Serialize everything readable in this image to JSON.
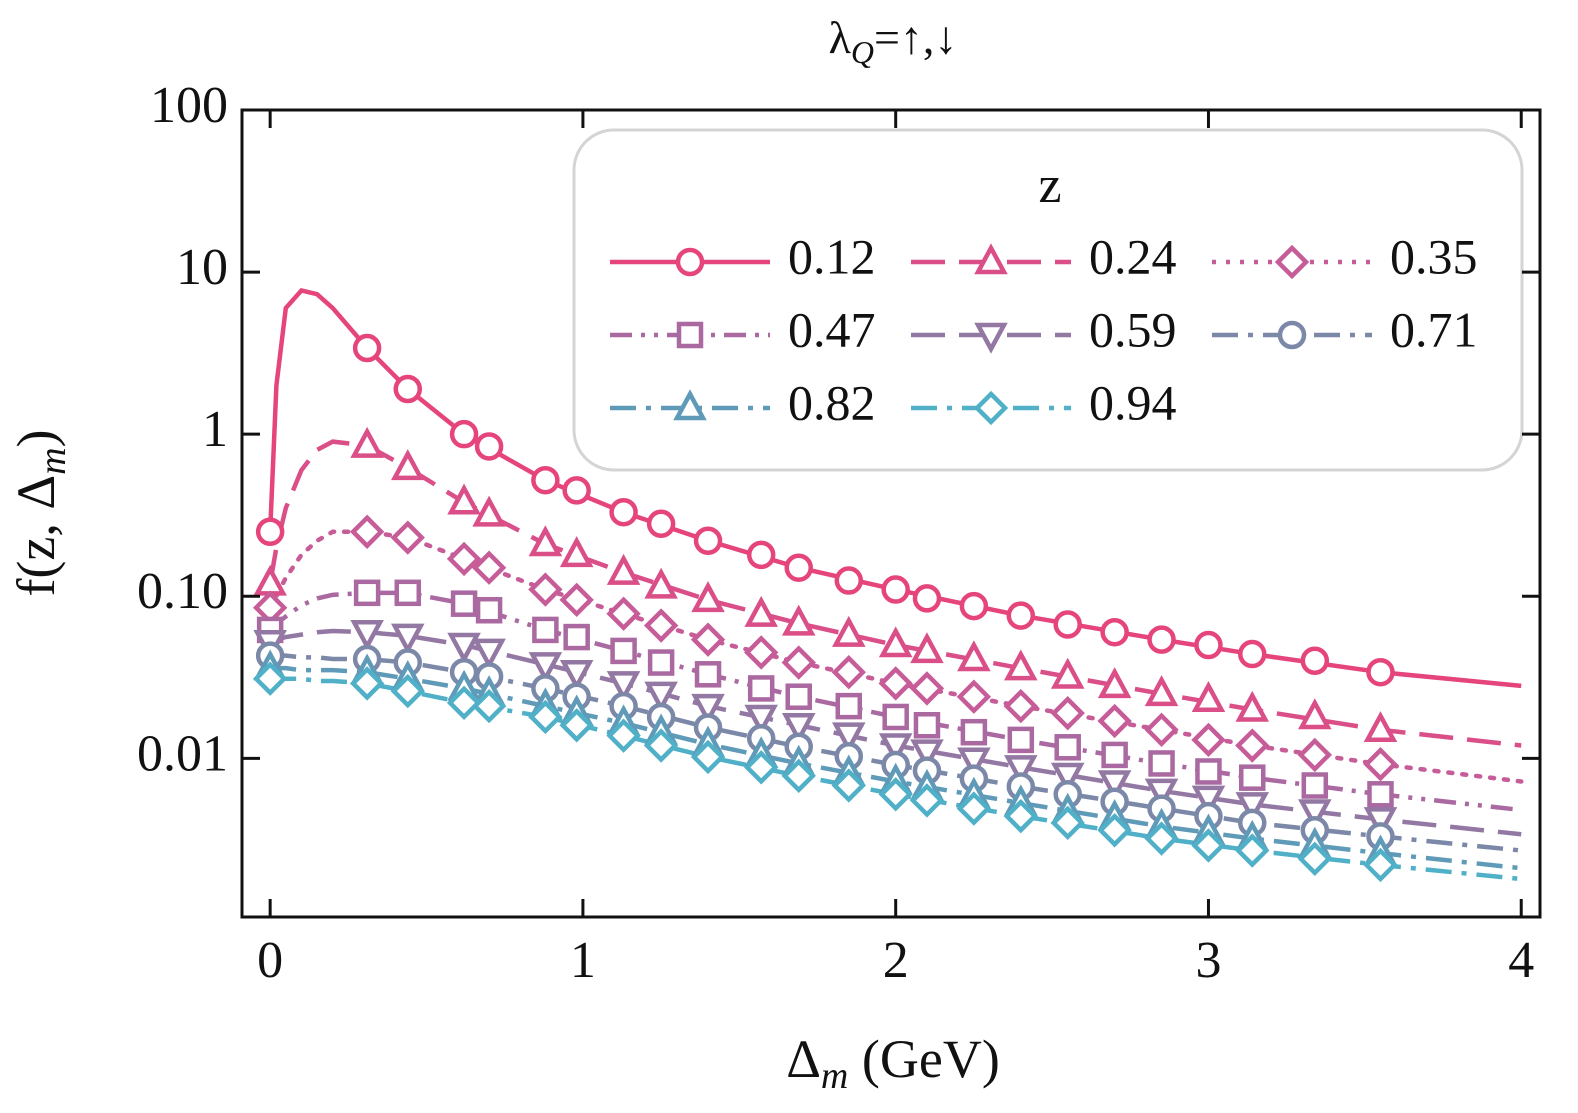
{
  "chart_data": {
    "type": "line",
    "title": [
      "λ",
      "Q",
      "=↑,↓"
    ],
    "x_label": [
      "Δ",
      "m",
      " (GeV)"
    ],
    "y_label": [
      "f(z, Δ",
      "m",
      ")"
    ],
    "legend_title": "z",
    "log_y": true,
    "xlim": [
      -0.09,
      4.06
    ],
    "xticks": [
      0,
      1,
      2,
      3,
      4
    ],
    "ylim": [
      0.00105,
      100
    ],
    "yticks": [
      100,
      10,
      1,
      {
        "value": 0.1,
        "label": "0.10"
      },
      0.01
    ],
    "x": [
      0,
      0.02,
      0.05,
      0.1,
      0.15,
      0.2,
      0.31,
      0.44,
      0.62,
      0.88,
      1.13,
      1.4,
      1.69,
      2.0,
      2.4,
      2.85,
      3.14,
      3.55,
      4.0
    ],
    "marker_x": [
      0,
      0.31,
      0.44,
      0.62,
      0.7,
      0.88,
      0.98,
      1.13,
      1.25,
      1.4,
      1.57,
      1.69,
      1.85,
      2.0,
      2.1,
      2.25,
      2.4,
      2.55,
      2.7,
      2.85,
      3.0,
      3.14,
      3.34,
      3.55
    ],
    "series": [
      {
        "name": "0.12",
        "color": "#e5457c",
        "marker": "circle",
        "dash": "solid",
        "values": [
          0.25,
          2,
          6,
          7.7,
          7.3,
          6,
          3.4,
          1.9,
          1.0,
          0.52,
          0.33,
          0.22,
          0.15,
          0.11,
          0.076,
          0.054,
          0.044,
          0.034,
          0.028
        ],
        "marker_values": [
          0.25,
          3.4,
          1.9,
          1.0,
          0.84,
          0.52,
          0.45,
          0.33,
          0.28,
          0.22,
          0.18,
          0.15,
          0.125,
          0.11,
          0.097,
          0.087,
          0.076,
          0.067,
          0.06,
          0.054,
          0.05,
          0.044,
          0.04,
          0.034
        ]
      },
      {
        "name": "0.24",
        "color": "#da4f88",
        "marker": "triangle-up",
        "dash": "long",
        "values": [
          0.12,
          0.2,
          0.35,
          0.6,
          0.8,
          0.9,
          0.85,
          0.62,
          0.38,
          0.21,
          0.14,
          0.095,
          0.068,
          0.05,
          0.036,
          0.025,
          0.02,
          0.015,
          0.012
        ],
        "marker_values": [
          0.12,
          0.85,
          0.62,
          0.38,
          0.32,
          0.21,
          0.18,
          0.14,
          0.115,
          0.095,
          0.077,
          0.068,
          0.058,
          0.05,
          0.046,
          0.041,
          0.036,
          0.032,
          0.028,
          0.025,
          0.023,
          0.02,
          0.018,
          0.015
        ]
      },
      {
        "name": "0.35",
        "color": "#c65c98",
        "marker": "diamond",
        "dash": "dotted",
        "values": [
          0.085,
          0.1,
          0.13,
          0.18,
          0.22,
          0.25,
          0.25,
          0.23,
          0.17,
          0.11,
          0.078,
          0.054,
          0.039,
          0.029,
          0.021,
          0.015,
          0.012,
          0.0092,
          0.0072
        ],
        "marker_values": [
          0.085,
          0.25,
          0.23,
          0.17,
          0.15,
          0.11,
          0.095,
          0.078,
          0.066,
          0.054,
          0.045,
          0.039,
          0.034,
          0.029,
          0.027,
          0.024,
          0.021,
          0.019,
          0.017,
          0.015,
          0.013,
          0.012,
          0.0105,
          0.0092
        ]
      },
      {
        "name": "0.47",
        "color": "#aa69a0",
        "marker": "square",
        "dash": "dashdotdot",
        "values": [
          0.062,
          0.068,
          0.075,
          0.088,
          0.097,
          0.102,
          0.105,
          0.105,
          0.09,
          0.062,
          0.046,
          0.033,
          0.024,
          0.018,
          0.013,
          0.0093,
          0.0076,
          0.006,
          0.0048
        ],
        "marker_values": [
          0.062,
          0.105,
          0.105,
          0.09,
          0.082,
          0.062,
          0.056,
          0.046,
          0.039,
          0.033,
          0.027,
          0.024,
          0.021,
          0.018,
          0.016,
          0.0145,
          0.013,
          0.0117,
          0.0105,
          0.0093,
          0.0083,
          0.0076,
          0.0068,
          0.006
        ]
      },
      {
        "name": "0.59",
        "color": "#9478a4",
        "marker": "triangle-down",
        "dash": "long",
        "values": [
          0.052,
          0.054,
          0.056,
          0.058,
          0.06,
          0.061,
          0.06,
          0.057,
          0.05,
          0.038,
          0.029,
          0.021,
          0.016,
          0.012,
          0.0088,
          0.0063,
          0.0052,
          0.0042,
          0.0034
        ],
        "marker_values": [
          0.052,
          0.06,
          0.057,
          0.05,
          0.046,
          0.038,
          0.034,
          0.029,
          0.025,
          0.021,
          0.018,
          0.016,
          0.014,
          0.012,
          0.011,
          0.0098,
          0.0088,
          0.0079,
          0.0071,
          0.0063,
          0.0057,
          0.0052,
          0.0047,
          0.0042
        ]
      },
      {
        "name": "0.71",
        "color": "#7b88a8",
        "marker": "circle",
        "dash": "dashdot",
        "values": [
          0.043,
          0.043,
          0.043,
          0.042,
          0.042,
          0.041,
          0.041,
          0.039,
          0.034,
          0.027,
          0.021,
          0.0155,
          0.0118,
          0.0091,
          0.0067,
          0.0049,
          0.004,
          0.0033,
          0.0027
        ],
        "marker_values": [
          0.043,
          0.041,
          0.039,
          0.034,
          0.032,
          0.027,
          0.024,
          0.021,
          0.018,
          0.0155,
          0.0133,
          0.0118,
          0.0103,
          0.0091,
          0.0084,
          0.0075,
          0.0067,
          0.006,
          0.0054,
          0.0049,
          0.0044,
          0.004,
          0.0036,
          0.0033
        ]
      },
      {
        "name": "0.82",
        "color": "#5f9bb8",
        "marker": "triangle-up",
        "dash": "dashdot",
        "values": [
          0.036,
          0.036,
          0.036,
          0.035,
          0.035,
          0.035,
          0.034,
          0.031,
          0.027,
          0.021,
          0.0165,
          0.0122,
          0.0093,
          0.0072,
          0.0053,
          0.0038,
          0.0032,
          0.0026,
          0.0021
        ],
        "marker_values": [
          0.036,
          0.034,
          0.031,
          0.027,
          0.025,
          0.021,
          0.019,
          0.0165,
          0.0145,
          0.0122,
          0.0105,
          0.0093,
          0.0081,
          0.0072,
          0.0066,
          0.0059,
          0.0053,
          0.0047,
          0.0043,
          0.0038,
          0.0035,
          0.0032,
          0.0029,
          0.0026
        ]
      },
      {
        "name": "0.94",
        "color": "#4fb0c8",
        "marker": "diamond",
        "dash": "dashdot",
        "values": [
          0.031,
          0.031,
          0.031,
          0.031,
          0.03,
          0.03,
          0.029,
          0.026,
          0.022,
          0.018,
          0.0138,
          0.0102,
          0.0078,
          0.006,
          0.0044,
          0.0032,
          0.0027,
          0.0022,
          0.0018
        ],
        "marker_values": [
          0.031,
          0.029,
          0.026,
          0.022,
          0.021,
          0.018,
          0.016,
          0.0138,
          0.012,
          0.0102,
          0.0088,
          0.0078,
          0.0068,
          0.006,
          0.0055,
          0.0049,
          0.0044,
          0.004,
          0.0036,
          0.0032,
          0.0029,
          0.0027,
          0.0024,
          0.0022
        ]
      }
    ]
  }
}
